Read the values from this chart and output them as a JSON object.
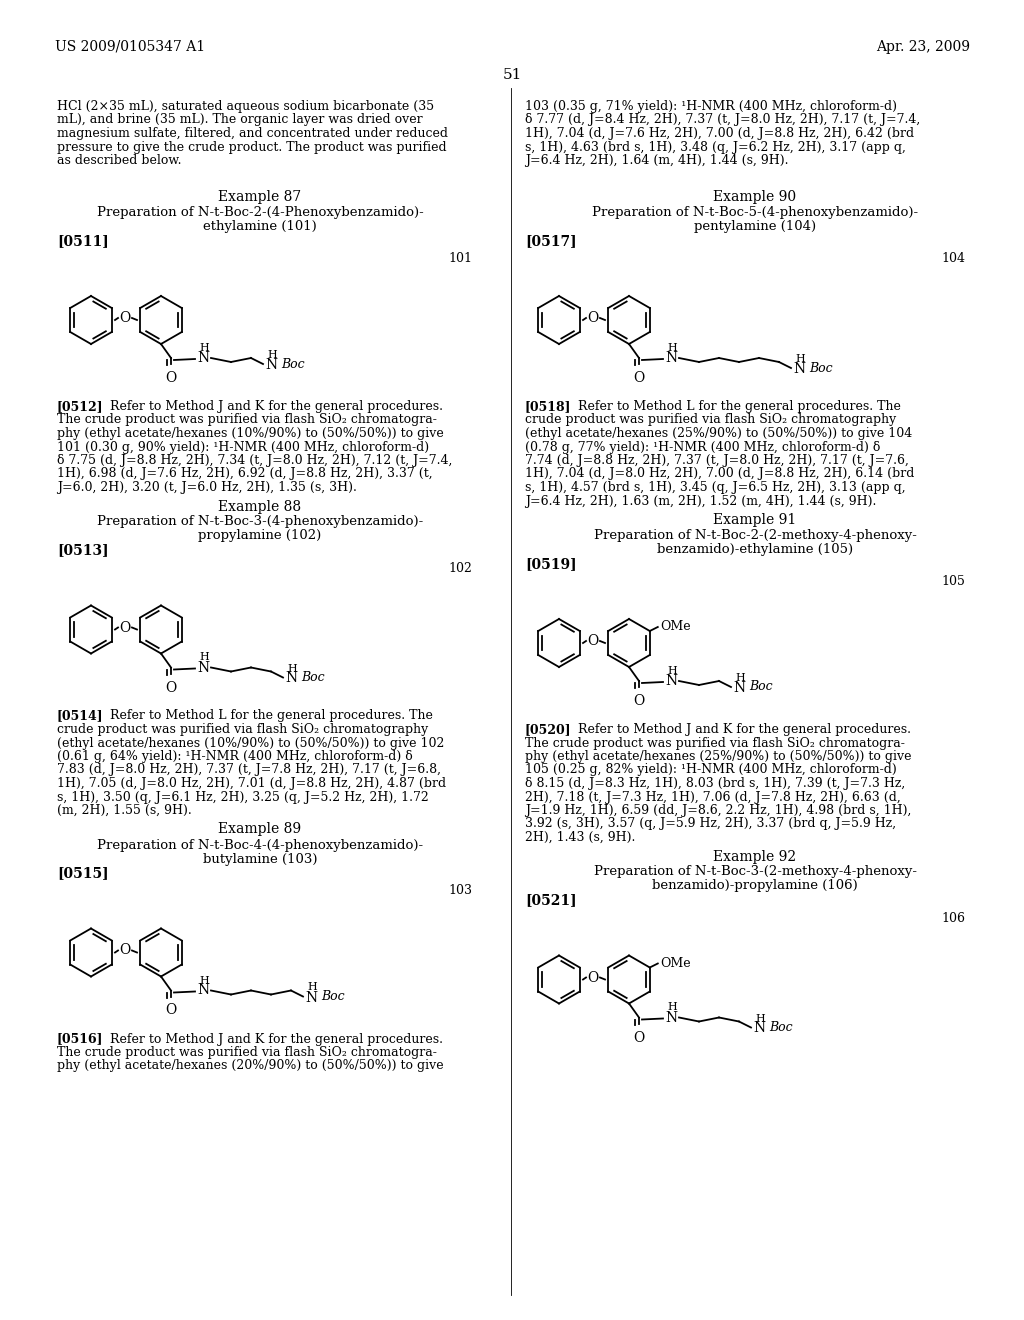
{
  "page_header_left": "US 2009/0105347 A1",
  "page_header_right": "Apr. 23, 2009",
  "page_number": "51",
  "background_color": "#ffffff",
  "text_color": "#000000",
  "intro_text_left": "HCl (2×35 mL), saturated aqueous sodium bicarbonate (35\nmL), and brine (35 mL). The organic layer was dried over\nmagnesium sulfate, filtered, and concentrated under reduced\npressure to give the crude product. The product was purified\nas described below.",
  "intro_text_right": "103 (0.35 g, 71% yield): ¹H-NMR (400 MHz, chloroform-d)\nδ 7.77 (d, J=8.4 Hz, 2H), 7.37 (t, J=8.0 Hz, 2H), 7.17 (t, J=7.4,\n1H), 7.04 (d, J=7.6 Hz, 2H), 7.00 (d, J=8.8 Hz, 2H), 6.42 (brd\ns, 1H), 4.63 (brd s, 1H), 3.48 (q, J=6.2 Hz, 2H), 3.17 (app q,\nJ=6.4 Hz, 2H), 1.64 (m, 4H), 1.44 (s, 9H).",
  "left_examples": [
    {
      "number": "Example 87",
      "title_line1": "Preparation of N-t-Boc-2-(4-Phenoxybenzamido)-",
      "title_line2": "ethylamine (101)",
      "bracket_ref": "[0511]",
      "compound_number": "101",
      "body_ref": "[0512]",
      "body_line1": "Refer to Method J and K for the general procedures.",
      "body_rest": "The crude product was purified via flash SiO₂ chromatogra-\nphy (ethyl acetate/hexanes (10%/90%) to (50%/50%)) to give\n101 (0.30 g, 90% yield): ¹H-NMR (400 MHz, chloroform-d)\nδ 7.75 (d, J=8.8 Hz, 2H), 7.34 (t, J=8.0 Hz, 2H), 7.12 (t, J=7.4,\n1H), 6.98 (d, J=7.6 Hz, 2H), 6.92 (d, J=8.8 Hz, 2H), 3.37 (t,\nJ=6.0, 2H), 3.20 (t, J=6.0 Hz, 2H), 1.35 (s, 3H).",
      "chain_n": 2,
      "has_methoxy": false
    },
    {
      "number": "Example 88",
      "title_line1": "Preparation of N-t-Boc-3-(4-phenoxybenzamido)-",
      "title_line2": "propylamine (102)",
      "bracket_ref": "[0513]",
      "compound_number": "102",
      "body_ref": "[0514]",
      "body_line1": "Refer to Method L for the general procedures. The",
      "body_rest": "crude product was purified via flash SiO₂ chromatography\n(ethyl acetate/hexanes (10%/90%) to (50%/50%)) to give 102\n(0.61 g, 64% yield): ¹H-NMR (400 MHz, chloroform-d) δ\n7.83 (d, J=8.0 Hz, 2H), 7.37 (t, J=7.8 Hz, 2H), 7.17 (t, J=6.8,\n1H), 7.05 (d, J=8.0 Hz, 2H), 7.01 (d, J=8.8 Hz, 2H), 4.87 (brd\ns, 1H), 3.50 (q, J=6.1 Hz, 2H), 3.25 (q, J=5.2 Hz, 2H), 1.72\n(m, 2H), 1.55 (s, 9H).",
      "chain_n": 3,
      "has_methoxy": false
    },
    {
      "number": "Example 89",
      "title_line1": "Preparation of N-t-Boc-4-(4-phenoxybenzamido)-",
      "title_line2": "butylamine (103)",
      "bracket_ref": "[0515]",
      "compound_number": "103",
      "body_ref": "[0516]",
      "body_line1": "Refer to Method J and K for the general procedures.",
      "body_rest": "The crude product was purified via flash SiO₂ chromatogra-\nphy (ethyl acetate/hexanes (20%/90%) to (50%/50%)) to give",
      "chain_n": 4,
      "has_methoxy": false
    }
  ],
  "right_examples": [
    {
      "number": "Example 90",
      "title_line1": "Preparation of N-t-Boc-5-(4-phenoxybenzamido)-",
      "title_line2": "pentylamine (104)",
      "bracket_ref": "[0517]",
      "compound_number": "104",
      "body_ref": "[0518]",
      "body_line1": "Refer to Method L for the general procedures. The",
      "body_rest": "crude product was purified via flash SiO₂ chromatography\n(ethyl acetate/hexanes (25%/90%) to (50%/50%)) to give 104\n(0.78 g, 77% yield): ¹H-NMR (400 MHz, chloroform-d) δ\n7.74 (d, J=8.8 Hz, 2H), 7.37 (t, J=8.0 Hz, 2H), 7.17 (t, J=7.6,\n1H), 7.04 (d, J=8.0 Hz, 2H), 7.00 (d, J=8.8 Hz, 2H), 6.14 (brd\ns, 1H), 4.57 (brd s, 1H), 3.45 (q, J=6.5 Hz, 2H), 3.13 (app q,\nJ=6.4 Hz, 2H), 1.63 (m, 2H), 1.52 (m, 4H), 1.44 (s, 9H).",
      "chain_n": 5,
      "has_methoxy": false
    },
    {
      "number": "Example 91",
      "title_line1": "Preparation of N-t-Boc-2-(2-methoxy-4-phenoxy-",
      "title_line2": "benzamido)-ethylamine (105)",
      "bracket_ref": "[0519]",
      "compound_number": "105",
      "body_ref": "[0520]",
      "body_line1": "Refer to Method J and K for the general procedures.",
      "body_rest": "The crude product was purified via flash SiO₂ chromatogra-\nphy (ethyl acetate/hexanes (25%/90%) to (50%/50%)) to give\n105 (0.25 g, 82% yield): ¹H-NMR (400 MHz, chloroform-d)\nδ 8.15 (d, J=8.3 Hz, 1H), 8.03 (brd s, 1H), 7.39 (t, J=7.3 Hz,\n2H), 7.18 (t, J=7.3 Hz, 1H), 7.06 (d, J=7.8 Hz, 2H), 6.63 (d,\nJ=1.9 Hz, 1H), 6.59 (dd, J=8.6, 2.2 Hz, 1H), 4.98 (brd s, 1H),\n3.92 (s, 3H), 3.57 (q, J=5.9 Hz, 2H), 3.37 (brd q, J=5.9 Hz,\n2H), 1.43 (s, 9H).",
      "chain_n": 2,
      "has_methoxy": true
    },
    {
      "number": "Example 92",
      "title_line1": "Preparation of N-t-Boc-3-(2-methoxy-4-phenoxy-",
      "title_line2": "benzamido)-propylamine (106)",
      "bracket_ref": "[0521]",
      "compound_number": "106",
      "body_ref": null,
      "body_line1": null,
      "body_rest": null,
      "chain_n": 3,
      "has_methoxy": true
    }
  ]
}
